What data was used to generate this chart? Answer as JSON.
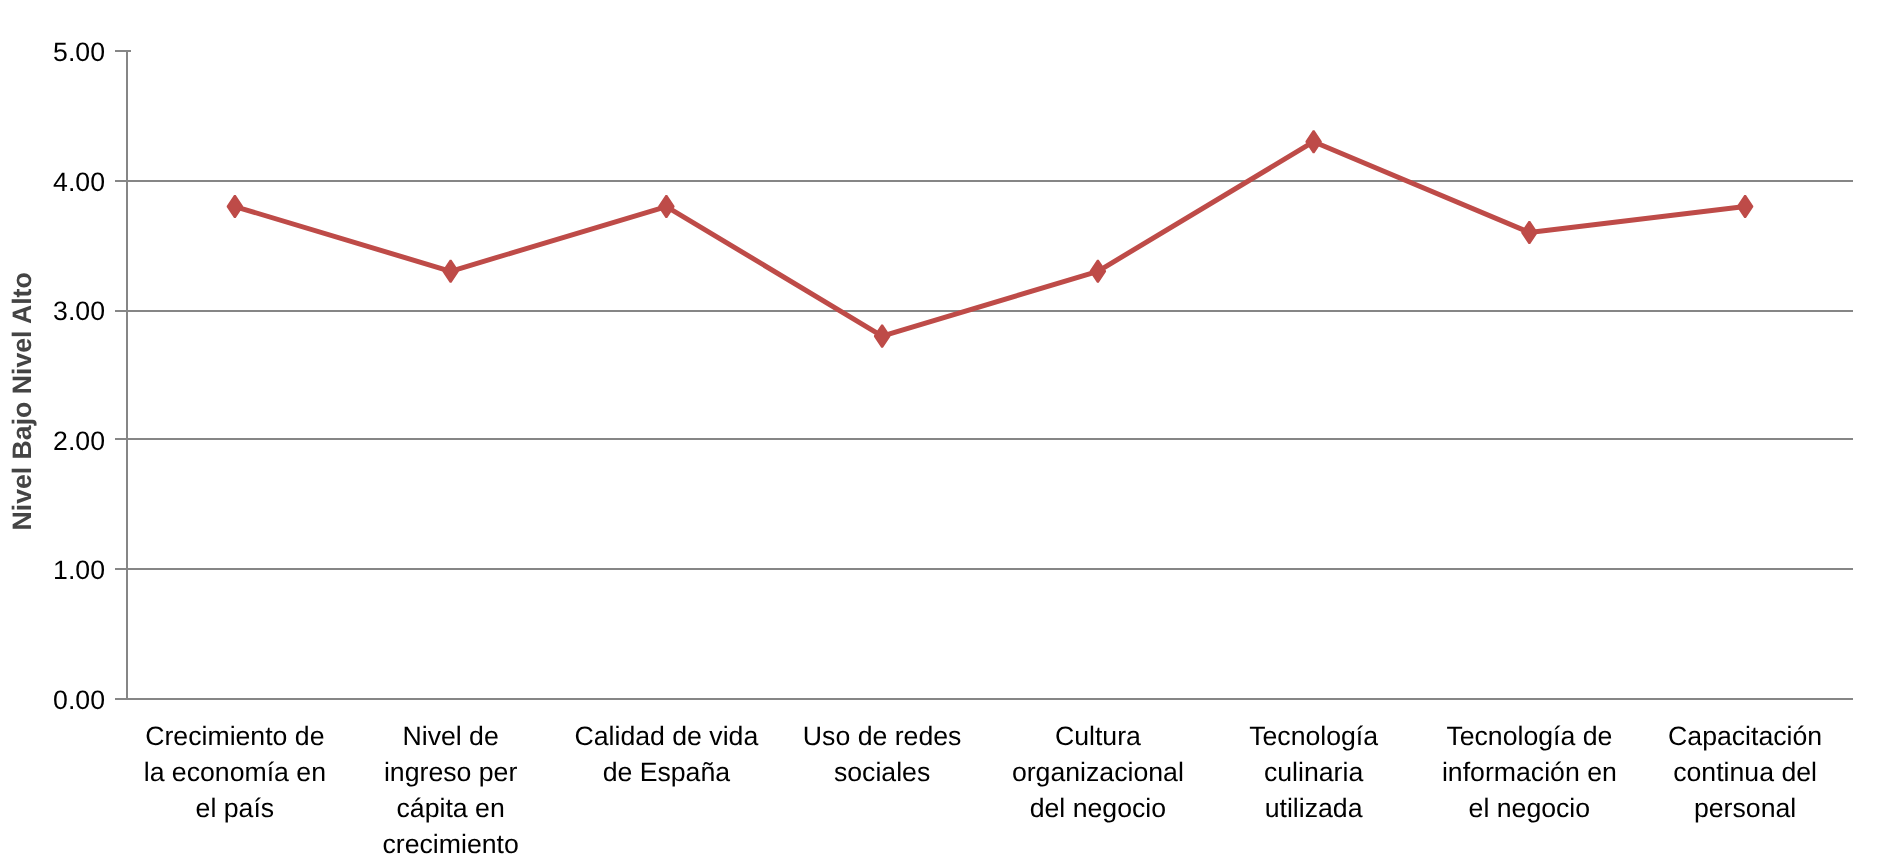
{
  "chart_data": {
    "type": "line",
    "ylabel": "Nivel Bajo        Nivel Alto",
    "categories": [
      "Crecimiento de la economía en el país",
      "Nivel de ingreso per cápita en crecimiento",
      "Calidad de vida de España",
      "Uso de redes sociales",
      "Cultura organizacional del negocio",
      "Tecnología culinaria utilizada",
      "Tecnología de información en el negocio",
      "Capacitación continua del personal"
    ],
    "series": [
      {
        "color": "#be4b48",
        "values": [
          3.8,
          3.3,
          3.8,
          2.8,
          3.3,
          4.3,
          3.6,
          3.8
        ]
      }
    ],
    "ylim": [
      0,
      5
    ],
    "yticks": [
      {
        "value": 0,
        "label": "0.00"
      },
      {
        "value": 1,
        "label": "1.00"
      },
      {
        "value": 2,
        "label": "2.00"
      },
      {
        "value": 3,
        "label": "3.00"
      },
      {
        "value": 4,
        "label": "4.00"
      },
      {
        "value": 5,
        "label": "5.00"
      }
    ],
    "grid": "y",
    "marker": "diamond",
    "line_style": "solid"
  }
}
